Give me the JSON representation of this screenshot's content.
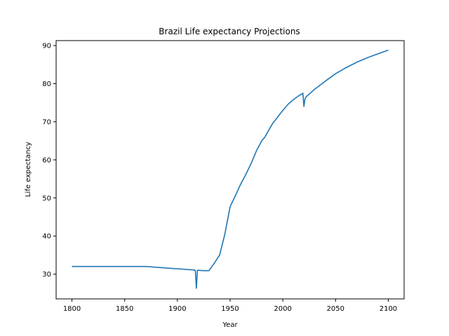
{
  "chart_data": {
    "type": "line",
    "title": "Brazil Life expectancy Projections",
    "xlabel": "Year",
    "ylabel": "Life expectancy",
    "xlim": [
      1785,
      2115
    ],
    "ylim": [
      23.5,
      91.3
    ],
    "xticks": [
      1800,
      1850,
      1900,
      1950,
      2000,
      2050,
      2100
    ],
    "yticks": [
      30,
      40,
      50,
      60,
      70,
      80,
      90
    ],
    "grid": false,
    "line_color": "#1f77b4",
    "series": [
      {
        "x": [
          1800,
          1820,
          1840,
          1860,
          1870,
          1880,
          1890,
          1900,
          1910,
          1915,
          1917,
          1918,
          1919,
          1920,
          1925,
          1930,
          1935,
          1940,
          1945,
          1950,
          1955,
          1960,
          1965,
          1970,
          1975,
          1980,
          1983,
          1985,
          1990,
          1995,
          2000,
          2005,
          2010,
          2015,
          2018,
          2019,
          2020,
          2021,
          2022,
          2030,
          2040,
          2050,
          2060,
          2070,
          2080,
          2090,
          2100
        ],
        "y": [
          32.0,
          32.0,
          32.0,
          32.0,
          32.0,
          31.8,
          31.6,
          31.4,
          31.2,
          31.1,
          31.0,
          26.3,
          31.0,
          31.0,
          30.9,
          30.9,
          32.9,
          35.0,
          40.5,
          47.7,
          50.6,
          53.6,
          56.2,
          59.1,
          62.4,
          65.0,
          66.0,
          67.0,
          69.4,
          71.2,
          73.0,
          74.6,
          75.8,
          76.8,
          77.3,
          77.5,
          74.0,
          76.0,
          76.5,
          78.5,
          80.6,
          82.6,
          84.2,
          85.6,
          86.8,
          87.8,
          88.8
        ]
      }
    ]
  }
}
